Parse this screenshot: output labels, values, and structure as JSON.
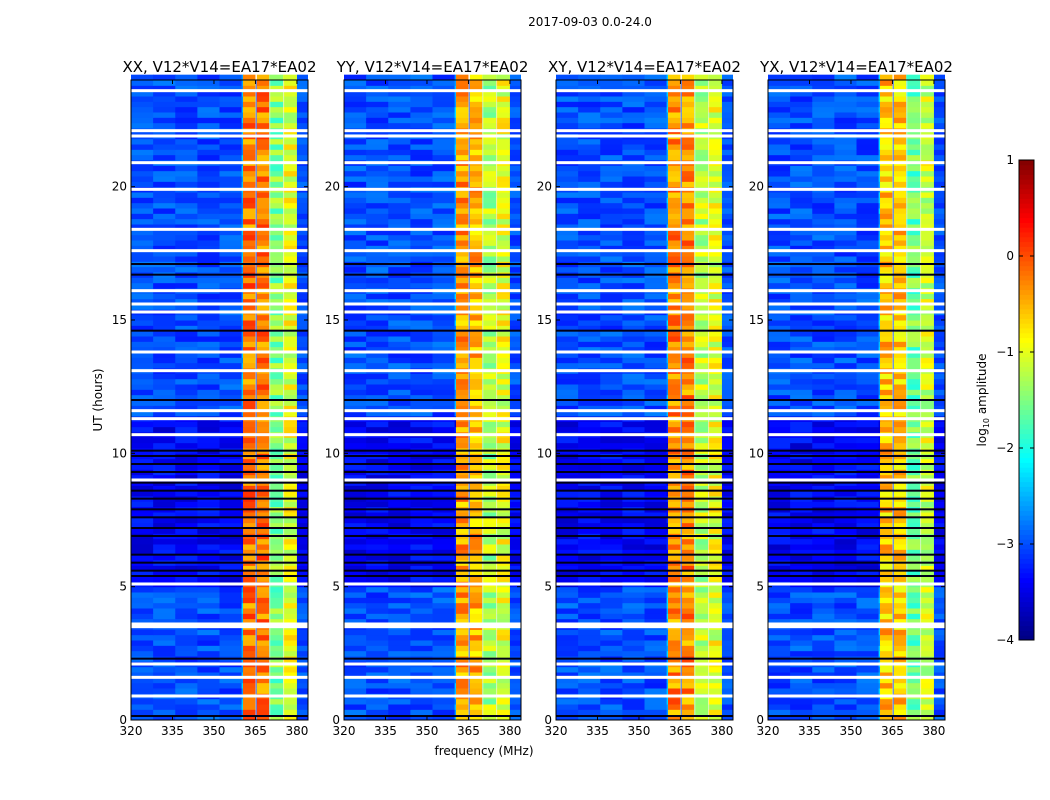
{
  "chart_data": {
    "type": "heatmap",
    "suptitle": "2017-09-03 0.0-24.0",
    "xlabel": "frequency (MHz)",
    "ylabel": "UT (hours)",
    "xlim": [
      320,
      384
    ],
    "ylim": [
      0,
      24
    ],
    "xticks": [
      "320",
      "335",
      "350",
      "365",
      "380"
    ],
    "xtick_values": [
      320,
      335,
      350,
      365,
      380
    ],
    "yticks": [
      "0",
      "5",
      "10",
      "15",
      "20"
    ],
    "ytick_values": [
      0,
      5,
      10,
      15,
      20
    ],
    "colormap": "jet",
    "color_range": [
      -4,
      1
    ],
    "colorbar": {
      "label_parts": [
        "log",
        "10",
        " amplitude"
      ],
      "ticks": [
        "1",
        "0",
        "−1",
        "−2",
        "−3",
        "−4"
      ],
      "tick_values": [
        1,
        0,
        -1,
        -2,
        -3,
        -4
      ]
    },
    "background_level": -3.0,
    "night_hours": [
      5,
      11.2
    ],
    "night_level": -3.4,
    "flagged_white_hours": [
      23.6,
      22.1,
      21.9,
      20.9,
      19.9,
      18.4,
      17.6,
      16.1,
      15.6,
      15.3,
      13.8,
      13.1,
      11.6,
      11.3,
      10.7,
      9.0,
      5.1,
      3.6,
      3.5,
      2.1,
      1.6,
      0.9
    ],
    "flagged_dark_hours": [
      17.1,
      16.7,
      14.6,
      12.0,
      10.1,
      9.9,
      9.6,
      9.3,
      8.9,
      8.6,
      8.3,
      7.9,
      7.6,
      7.2,
      6.9,
      6.2,
      5.9,
      5.6,
      5.4,
      2.3,
      0.15
    ],
    "panels": [
      {
        "title": "XX, V12*V14=EA17*EA02",
        "bands": [
          {
            "from": 360.5,
            "to": 365,
            "value": -0.2
          },
          {
            "from": 365.5,
            "to": 370,
            "value": -0.2
          },
          {
            "from": 370,
            "to": 375,
            "value": -1.5
          },
          {
            "from": 375,
            "to": 380,
            "value": -1.0
          }
        ]
      },
      {
        "title": "YY, V12*V14=EA17*EA02",
        "bands": [
          {
            "from": 360.5,
            "to": 365,
            "value": -0.4
          },
          {
            "from": 365.5,
            "to": 370,
            "value": -0.5
          },
          {
            "from": 370,
            "to": 375,
            "value": -1.3
          },
          {
            "from": 375,
            "to": 380,
            "value": -1.0
          }
        ]
      },
      {
        "title": "XY, V12*V14=EA17*EA02",
        "bands": [
          {
            "from": 360.5,
            "to": 365,
            "value": -0.3
          },
          {
            "from": 365.5,
            "to": 370,
            "value": -0.3
          },
          {
            "from": 370,
            "to": 375,
            "value": -1.2
          },
          {
            "from": 375,
            "to": 380,
            "value": -1.0
          }
        ]
      },
      {
        "title": "YX, V12*V14=EA17*EA02",
        "bands": [
          {
            "from": 360.5,
            "to": 365,
            "value": -0.6
          },
          {
            "from": 365.5,
            "to": 370,
            "value": -0.6
          },
          {
            "from": 370,
            "to": 375,
            "value": -1.6
          },
          {
            "from": 375,
            "to": 380,
            "value": -1.1
          }
        ]
      }
    ]
  }
}
